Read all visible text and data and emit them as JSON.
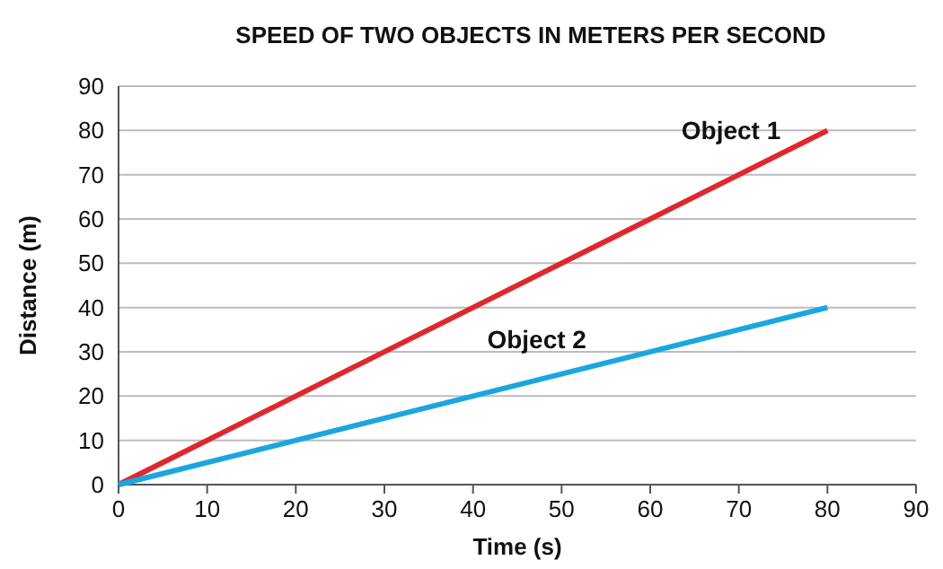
{
  "chart_data": {
    "type": "line",
    "title": "SPEED OF TWO OBJECTS IN METERS PER SECOND",
    "xlabel": "Time (s)",
    "ylabel": "Distance (m)",
    "xlim": [
      0,
      90
    ],
    "ylim": [
      0,
      90
    ],
    "xticks": [
      0,
      10,
      20,
      30,
      40,
      50,
      60,
      70,
      80,
      90
    ],
    "yticks": [
      0,
      10,
      20,
      30,
      40,
      50,
      60,
      70,
      80,
      90
    ],
    "grid": "y",
    "legend": false,
    "x": [
      0,
      80
    ],
    "series": [
      {
        "name": "Object 1",
        "color": "#e0262e",
        "values": [
          0,
          80
        ]
      },
      {
        "name": "Object 2",
        "color": "#1ba6e0",
        "values": [
          0,
          40
        ]
      }
    ]
  }
}
